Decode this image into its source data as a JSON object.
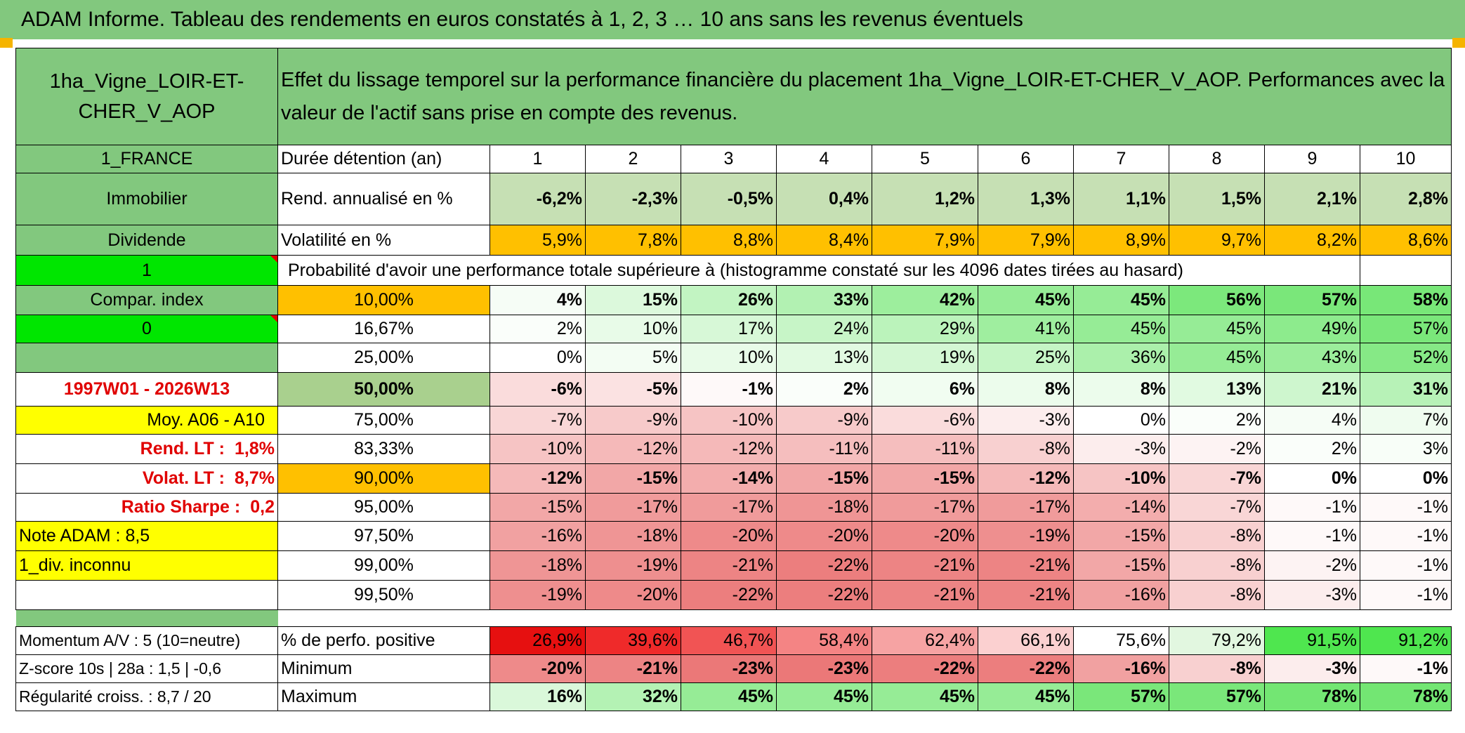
{
  "title": "ADAM Informe. Tableau des rendements en euros constatés à 1, 2, 3 … 10 ans sans les revenus éventuels",
  "header": {
    "asset_name": "1ha_Vigne_LOIR-ET-CHER_V_AOP",
    "description": "Effet du lissage temporel sur la performance financière du placement 1ha_Vigne_LOIR-ET-CHER_V_AOP. Performances avec la valeur de l'actif sans prise en compte des revenus."
  },
  "left_labels": {
    "country": "1_FRANCE",
    "category": "Immobilier",
    "income_type": "Dividende",
    "flag1": "1",
    "compar_index": "Compar. index",
    "flag0": "0",
    "period": "1997W01 - 2026W13",
    "moy": "Moy. A06 - A10",
    "rend_lt_label": "Rend. LT :",
    "rend_lt_value": "1,8%",
    "volat_lt_label": "Volat. LT :",
    "volat_lt_value": "8,7%",
    "sharpe_label": "Ratio Sharpe :",
    "sharpe_value": "0,2",
    "note": "Note ADAM : 8,5",
    "div": "1_div. inconnu",
    "momentum": "Momentum A/V : 5 (10=neutre)",
    "zscore": "Z-score 10s | 28a : 1,5 | -0,6",
    "regularite": "Régularité croiss. : 8,7 / 20"
  },
  "row_labels": {
    "duration": "Durée détention (an)",
    "rend": "Rend. annualisé en %",
    "vol": "Volatilité en %",
    "prob": "Probabilité d'avoir une performance totale supérieure à (histogramme constaté sur les 4096 dates tirées au hasard)",
    "pos": "% de perfo. positive",
    "min": "Minimum",
    "max": "Maximum"
  },
  "years": [
    "1",
    "2",
    "3",
    "4",
    "5",
    "6",
    "7",
    "8",
    "9",
    "10"
  ],
  "rend": [
    "-6,2%",
    "-2,3%",
    "-0,5%",
    "0,4%",
    "1,2%",
    "1,3%",
    "1,1%",
    "1,5%",
    "2,1%",
    "2,8%"
  ],
  "vol": [
    "5,9%",
    "7,8%",
    "8,8%",
    "8,4%",
    "7,9%",
    "7,9%",
    "8,9%",
    "9,7%",
    "8,2%",
    "8,6%"
  ],
  "pct_rows": [
    {
      "p": "10,00%",
      "v": [
        "4%",
        "15%",
        "26%",
        "33%",
        "42%",
        "45%",
        "45%",
        "56%",
        "57%",
        "58%"
      ]
    },
    {
      "p": "16,67%",
      "v": [
        "2%",
        "10%",
        "17%",
        "24%",
        "29%",
        "41%",
        "45%",
        "45%",
        "49%",
        "57%"
      ]
    },
    {
      "p": "25,00%",
      "v": [
        "0%",
        "5%",
        "10%",
        "13%",
        "19%",
        "25%",
        "36%",
        "45%",
        "43%",
        "52%"
      ]
    },
    {
      "p": "50,00%",
      "v": [
        "-6%",
        "-5%",
        "-1%",
        "2%",
        "6%",
        "8%",
        "8%",
        "13%",
        "21%",
        "31%"
      ]
    },
    {
      "p": "75,00%",
      "v": [
        "-7%",
        "-9%",
        "-10%",
        "-9%",
        "-6%",
        "-3%",
        "0%",
        "2%",
        "4%",
        "7%"
      ]
    },
    {
      "p": "83,33%",
      "v": [
        "-10%",
        "-12%",
        "-12%",
        "-11%",
        "-11%",
        "-8%",
        "-3%",
        "-2%",
        "2%",
        "3%"
      ]
    },
    {
      "p": "90,00%",
      "v": [
        "-12%",
        "-15%",
        "-14%",
        "-15%",
        "-15%",
        "-12%",
        "-10%",
        "-7%",
        "0%",
        "0%"
      ]
    },
    {
      "p": "95,00%",
      "v": [
        "-15%",
        "-17%",
        "-17%",
        "-18%",
        "-17%",
        "-17%",
        "-14%",
        "-7%",
        "-1%",
        "-1%"
      ]
    },
    {
      "p": "97,50%",
      "v": [
        "-16%",
        "-18%",
        "-20%",
        "-20%",
        "-20%",
        "-19%",
        "-15%",
        "-8%",
        "-1%",
        "-1%"
      ]
    },
    {
      "p": "99,00%",
      "v": [
        "-18%",
        "-19%",
        "-21%",
        "-22%",
        "-21%",
        "-21%",
        "-15%",
        "-8%",
        "-2%",
        "-1%"
      ]
    },
    {
      "p": "99,50%",
      "v": [
        "-19%",
        "-20%",
        "-22%",
        "-22%",
        "-21%",
        "-21%",
        "-16%",
        "-8%",
        "-3%",
        "-1%"
      ]
    }
  ],
  "pos": [
    "26,9%",
    "39,6%",
    "46,7%",
    "58,4%",
    "62,4%",
    "66,1%",
    "75,6%",
    "79,2%",
    "91,5%",
    "91,2%"
  ],
  "min": [
    "-20%",
    "-21%",
    "-23%",
    "-23%",
    "-22%",
    "-22%",
    "-16%",
    "-8%",
    "-3%",
    "-1%"
  ],
  "max": [
    "16%",
    "32%",
    "45%",
    "45%",
    "45%",
    "45%",
    "57%",
    "57%",
    "78%",
    "78%"
  ],
  "colors": {
    "header_green": "#82c87e",
    "bright_green": "#00e600",
    "yellow": "#ffff00",
    "orange": "#ffc000",
    "red_text": "#e00000"
  }
}
